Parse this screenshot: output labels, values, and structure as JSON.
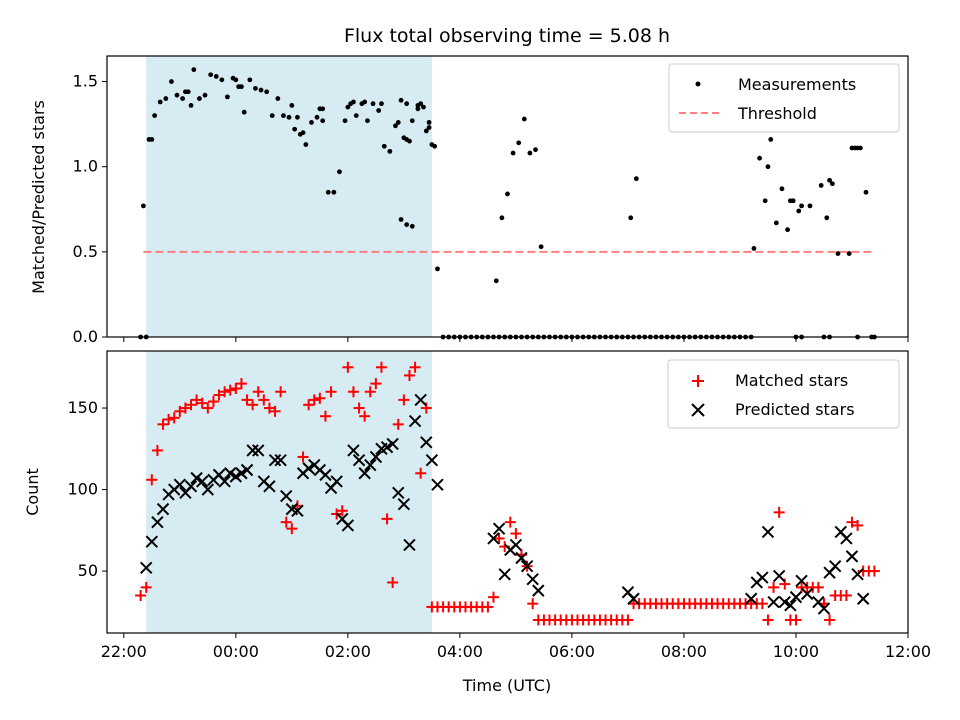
{
  "chart_data": [
    {
      "type": "scatter",
      "title": "Flux total observing time = 5.08 h",
      "ylabel": "Matched/Predicted stars",
      "ylim": [
        0,
        1.65
      ],
      "xlim": [
        21.7,
        36
      ],
      "yticks": [
        0.0,
        0.5,
        1.0,
        1.5
      ],
      "ytick_labels": [
        "0.0",
        "0.5",
        "1.0",
        "1.5"
      ],
      "shaded_span": {
        "x0": 22.4,
        "x1": 27.5,
        "color": "#add8e6"
      },
      "legend_position": "upper right",
      "series": [
        {
          "name": "Measurements",
          "marker": "dot",
          "color": "#000000",
          "x": [
            22.35,
            22.45,
            22.55,
            22.65,
            22.75,
            22.85,
            22.95,
            23.05,
            23.15,
            23.25,
            23.35,
            23.45,
            23.55,
            23.65,
            23.75,
            23.85,
            23.95,
            24.05,
            24.15,
            24.25,
            24.35,
            24.45,
            24.55,
            24.65,
            24.75,
            24.85,
            24.95,
            25.05,
            25.15,
            25.25,
            25.35,
            25.45,
            25.55,
            25.65,
            25.75,
            25.85,
            25.95,
            26.05,
            26.15,
            26.25,
            26.35,
            26.45,
            26.55,
            26.65,
            26.75,
            26.85,
            26.95,
            27.05,
            27.15,
            27.25,
            27.35,
            27.45,
            27.55,
            28.65,
            28.75,
            28.85,
            28.95,
            29.05,
            29.15,
            29.25,
            29.35,
            29.45,
            31.05,
            31.15,
            33.25,
            33.35,
            33.45,
            33.55,
            33.65,
            33.75,
            33.85,
            33.95,
            34.05,
            34.25,
            34.45,
            34.55,
            34.65,
            34.75,
            35.05,
            35.15,
            35.25,
            35.35
          ],
          "y": [
            0.77,
            1.16,
            1.3,
            1.38,
            1.4,
            1.5,
            1.42,
            1.4,
            1.44,
            1.57,
            1.4,
            1.42,
            1.54,
            1.53,
            1.51,
            1.41,
            1.52,
            1.47,
            1.32,
            1.51,
            1.46,
            1.45,
            1.44,
            1.3,
            1.4,
            1.3,
            1.29,
            1.22,
            1.19,
            1.13,
            1.26,
            1.29,
            1.34,
            0.85,
            0.85,
            0.97,
            1.27,
            1.37,
            1.3,
            1.37,
            1.27,
            1.37,
            1.33,
            1.12,
            1.09,
            1.24,
            1.39,
            1.37,
            1.27,
            1.36,
            1.35,
            1.23,
            1.12,
            0.33,
            0.7,
            0.84,
            1.08,
            1.14,
            1.28,
            1.08,
            1.1,
            0.53,
            0.7,
            0.93,
            0.52,
            1.05,
            0.8,
            1.16,
            0.67,
            0.87,
            0.63,
            0.8,
            0.74,
            0.77,
            0.89,
            0.7,
            0.9,
            0.49,
            1.11,
            1.11,
            0.85,
            0.0
          ],
          "extra_points": [
            [
              22.3,
              0.0
            ],
            [
              22.4,
              0.0
            ],
            [
              22.5,
              1.16
            ],
            [
              23.1,
              1.44
            ],
            [
              23.2,
              1.36
            ],
            [
              24.0,
              1.51
            ],
            [
              24.1,
              1.47
            ],
            [
              25.0,
              1.36
            ],
            [
              25.1,
              1.29
            ],
            [
              25.2,
              1.2
            ],
            [
              25.5,
              1.34
            ],
            [
              25.55,
              1.27
            ],
            [
              26.0,
              1.35
            ],
            [
              26.1,
              1.38
            ],
            [
              26.3,
              1.38
            ],
            [
              26.6,
              1.37
            ],
            [
              26.9,
              1.26
            ],
            [
              27.0,
              1.17
            ],
            [
              27.05,
              1.16
            ],
            [
              27.1,
              1.15
            ],
            [
              27.25,
              1.34
            ],
            [
              27.3,
              1.37
            ],
            [
              27.4,
              1.21
            ],
            [
              27.45,
              1.26
            ],
            [
              27.5,
              1.13
            ],
            [
              26.95,
              0.69
            ],
            [
              27.05,
              0.66
            ],
            [
              27.15,
              0.65
            ],
            [
              27.6,
              0.4
            ],
            [
              33.5,
              1.0
            ],
            [
              33.9,
              0.8
            ],
            [
              34.1,
              0.77
            ],
            [
              34.6,
              0.92
            ],
            [
              34.95,
              0.49
            ],
            [
              35.0,
              1.11
            ],
            [
              35.1,
              1.11
            ]
          ],
          "zero_points_x": [
            27.7,
            27.8,
            27.9,
            28.0,
            28.1,
            28.2,
            28.3,
            28.4,
            28.5,
            28.6,
            28.7,
            28.8,
            28.9,
            29.0,
            29.1,
            29.2,
            29.3,
            29.4,
            29.5,
            29.6,
            29.7,
            29.8,
            29.9,
            30.0,
            30.1,
            30.2,
            30.3,
            30.4,
            30.5,
            30.6,
            30.7,
            30.8,
            30.9,
            31.0,
            31.1,
            31.2,
            31.3,
            31.4,
            31.5,
            31.6,
            31.7,
            31.8,
            31.9,
            32.0,
            32.1,
            32.2,
            32.3,
            32.4,
            32.5,
            32.6,
            32.7,
            32.8,
            32.9,
            33.0,
            33.1,
            33.2,
            34.0,
            34.1,
            34.5,
            34.6,
            35.1,
            35.4
          ]
        },
        {
          "name": "Threshold",
          "marker": "dashed-line",
          "color": "#ff7f7f",
          "x": [
            22.35,
            35.4
          ],
          "y": [
            0.5,
            0.5
          ]
        }
      ]
    },
    {
      "type": "scatter",
      "xlabel": "Time (UTC)",
      "ylabel": "Count",
      "ylim": [
        12,
        185
      ],
      "xlim": [
        21.7,
        36
      ],
      "yticks": [
        50,
        100,
        150
      ],
      "ytick_labels": [
        "50",
        "100",
        "150"
      ],
      "xticks": [
        22,
        24,
        26,
        28,
        30,
        32,
        34,
        36
      ],
      "xtick_labels": [
        "22:00",
        "00:00",
        "02:00",
        "04:00",
        "06:00",
        "08:00",
        "10:00",
        "12:00"
      ],
      "shaded_span": {
        "x0": 22.4,
        "x1": 27.5,
        "color": "#add8e6"
      },
      "legend_position": "upper right",
      "series": [
        {
          "name": "Matched stars",
          "marker": "plus",
          "color": "#ff0000",
          "x": [
            22.3,
            22.4,
            22.5,
            22.6,
            22.7,
            22.8,
            22.9,
            23.0,
            23.1,
            23.2,
            23.3,
            23.4,
            23.5,
            23.6,
            23.7,
            23.8,
            23.9,
            24.0,
            24.1,
            24.2,
            24.3,
            24.4,
            24.5,
            24.6,
            24.7,
            24.8,
            24.9,
            25.0,
            25.1,
            25.2,
            25.3,
            25.4,
            25.5,
            25.6,
            25.7,
            25.8,
            25.9,
            26.0,
            26.1,
            26.2,
            26.3,
            26.4,
            26.5,
            26.6,
            26.7,
            26.8,
            26.9,
            27.0,
            27.1,
            27.2,
            27.3,
            27.4,
            27.5,
            27.6,
            27.7,
            27.8,
            27.9,
            28.0,
            28.1,
            28.2,
            28.3,
            28.4,
            28.5,
            28.6,
            28.7,
            28.8,
            28.9,
            29.0,
            29.1,
            29.2,
            29.3,
            29.4,
            29.5,
            29.6,
            29.7,
            29.8,
            29.9,
            30.0,
            30.1,
            30.2,
            30.3,
            30.4,
            30.5,
            30.6,
            30.7,
            30.8,
            30.9,
            31.0,
            31.1,
            31.2,
            31.3,
            31.4,
            31.5,
            31.6,
            31.7,
            31.8,
            31.9,
            32.0,
            32.1,
            32.2,
            32.3,
            32.4,
            32.5,
            32.6,
            32.7,
            32.8,
            32.9,
            33.0,
            33.1,
            33.2,
            33.3,
            33.4,
            33.5,
            33.6,
            33.7,
            33.8,
            33.9,
            34.0,
            34.1,
            34.2,
            34.3,
            34.4,
            34.5,
            34.6,
            34.7,
            34.8,
            34.9,
            35.0,
            35.1,
            35.2,
            35.3,
            35.4
          ],
          "y": [
            35,
            40,
            106,
            124,
            140,
            143,
            144,
            148,
            150,
            152,
            155,
            153,
            150,
            154,
            158,
            160,
            161,
            162,
            165,
            155,
            152,
            160,
            155,
            150,
            148,
            160,
            80,
            76,
            90,
            120,
            152,
            155,
            156,
            145,
            160,
            85,
            87,
            175,
            160,
            150,
            145,
            160,
            165,
            175,
            82,
            43,
            140,
            155,
            170,
            175,
            110,
            150,
            28,
            28,
            28,
            28,
            28,
            28,
            28,
            28,
            28,
            28,
            28,
            34,
            70,
            65,
            80,
            73,
            60,
            53,
            30,
            20,
            20,
            20,
            20,
            20,
            20,
            20,
            20,
            20,
            20,
            20,
            20,
            20,
            20,
            20,
            20,
            20,
            30,
            30,
            30,
            30,
            30,
            30,
            30,
            30,
            30,
            30,
            30,
            30,
            30,
            30,
            30,
            30,
            30,
            30,
            30,
            30,
            30,
            30,
            30,
            30,
            20,
            40,
            86,
            42,
            20,
            20,
            40,
            40,
            40,
            40,
            30,
            20,
            35,
            35,
            35,
            80,
            78,
            50,
            50,
            50
          ]
        },
        {
          "name": "Predicted stars",
          "marker": "x",
          "color": "#000000",
          "x": [
            22.4,
            22.5,
            22.6,
            22.7,
            22.8,
            22.9,
            23.0,
            23.1,
            23.2,
            23.3,
            23.4,
            23.5,
            23.6,
            23.7,
            23.8,
            23.9,
            24.0,
            24.1,
            24.2,
            24.3,
            24.4,
            24.5,
            24.6,
            24.7,
            24.8,
            24.9,
            25.0,
            25.1,
            25.2,
            25.3,
            25.4,
            25.5,
            25.6,
            25.7,
            25.8,
            25.9,
            26.0,
            26.1,
            26.2,
            26.3,
            26.4,
            26.5,
            26.6,
            26.7,
            26.8,
            26.9,
            27.0,
            27.1,
            27.2,
            27.3,
            27.4,
            27.5,
            27.6,
            28.6,
            28.7,
            28.8,
            28.9,
            29.0,
            29.1,
            29.2,
            29.3,
            29.4,
            31.0,
            31.1,
            33.2,
            33.3,
            33.4,
            33.5,
            33.6,
            33.7,
            33.8,
            33.9,
            34.0,
            34.1,
            34.2,
            34.4,
            34.5,
            34.6,
            34.7,
            34.8,
            34.9,
            35.0,
            35.1,
            35.2
          ],
          "y": [
            52,
            68,
            80,
            88,
            97,
            100,
            103,
            98,
            102,
            107,
            105,
            100,
            106,
            109,
            105,
            110,
            108,
            110,
            112,
            124,
            124,
            105,
            102,
            118,
            118,
            96,
            88,
            87,
            110,
            113,
            115,
            112,
            109,
            101,
            105,
            82,
            78,
            124,
            118,
            110,
            115,
            120,
            125,
            126,
            128,
            98,
            91,
            66,
            142,
            155,
            129,
            118,
            103,
            70,
            76,
            48,
            63,
            66,
            58,
            53,
            45,
            38,
            37,
            33,
            33,
            43,
            46,
            74,
            31,
            47,
            31,
            29,
            34,
            44,
            36,
            31,
            27,
            49,
            53,
            74,
            70,
            59,
            48,
            33
          ]
        }
      ]
    }
  ]
}
